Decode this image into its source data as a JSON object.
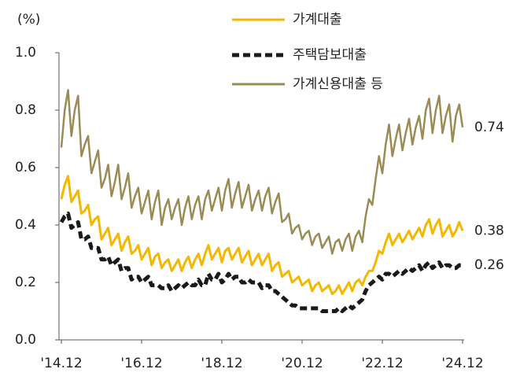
{
  "chart_data": {
    "type": "line",
    "y_label": "(%)",
    "categories": [
      "'14.12",
      null,
      null,
      null,
      null,
      null,
      null,
      null,
      null,
      null,
      null,
      null,
      null,
      null,
      null,
      null,
      null,
      null,
      null,
      null,
      null,
      null,
      null,
      null,
      "'16.12",
      null,
      null,
      null,
      null,
      null,
      null,
      null,
      null,
      null,
      null,
      null,
      null,
      null,
      null,
      null,
      null,
      null,
      null,
      null,
      null,
      null,
      null,
      null,
      "'18.12",
      null,
      null,
      null,
      null,
      null,
      null,
      null,
      null,
      null,
      null,
      null,
      null,
      null,
      null,
      null,
      null,
      null,
      null,
      null,
      null,
      null,
      null,
      null,
      "'20.12",
      null,
      null,
      null,
      null,
      null,
      null,
      null,
      null,
      null,
      null,
      null,
      null,
      null,
      null,
      null,
      null,
      null,
      null,
      null,
      null,
      null,
      null,
      null,
      "'22.12",
      null,
      null,
      null,
      null,
      null,
      null,
      null,
      null,
      null,
      null,
      null,
      null,
      null,
      null,
      null,
      null,
      null,
      null,
      null,
      null,
      null,
      null,
      null,
      "'24.12"
    ],
    "ylim": [
      0,
      1
    ],
    "yticks": [
      {
        "value": 0,
        "label": "0.0"
      },
      0.2,
      0.4,
      0.6,
      0.8,
      {
        "value": 1,
        "label": "1.0"
      }
    ],
    "grid": false,
    "legend": "top",
    "series": [
      {
        "name": "가계대출",
        "color": "#f5b800",
        "dashed": false,
        "values": [
          0.49,
          0.54,
          0.57,
          0.48,
          0.5,
          0.52,
          0.44,
          0.45,
          0.47,
          0.4,
          0.42,
          0.43,
          0.35,
          0.37,
          0.39,
          0.33,
          0.35,
          0.37,
          0.31,
          0.34,
          0.36,
          0.3,
          0.31,
          0.33,
          0.28,
          0.3,
          0.32,
          0.26,
          0.29,
          0.3,
          0.25,
          0.27,
          0.28,
          0.24,
          0.26,
          0.28,
          0.24,
          0.27,
          0.29,
          0.25,
          0.28,
          0.3,
          0.26,
          0.3,
          0.33,
          0.28,
          0.3,
          0.32,
          0.27,
          0.31,
          0.32,
          0.28,
          0.3,
          0.32,
          0.27,
          0.29,
          0.31,
          0.26,
          0.28,
          0.3,
          0.26,
          0.28,
          0.3,
          0.24,
          0.26,
          0.27,
          0.22,
          0.23,
          0.24,
          0.2,
          0.21,
          0.22,
          0.19,
          0.2,
          0.21,
          0.17,
          0.19,
          0.2,
          0.17,
          0.18,
          0.19,
          0.16,
          0.17,
          0.19,
          0.16,
          0.18,
          0.2,
          0.17,
          0.2,
          0.21,
          0.19,
          0.22,
          0.24,
          0.24,
          0.27,
          0.31,
          0.3,
          0.34,
          0.37,
          0.33,
          0.35,
          0.37,
          0.34,
          0.36,
          0.38,
          0.35,
          0.37,
          0.39,
          0.36,
          0.4,
          0.42,
          0.37,
          0.4,
          0.42,
          0.36,
          0.38,
          0.4,
          0.36,
          0.38,
          0.41,
          0.38
        ]
      },
      {
        "name": "주택담보대출",
        "color": "#1a1a1a",
        "dashed": true,
        "values": [
          0.41,
          0.43,
          0.44,
          0.39,
          0.4,
          0.41,
          0.35,
          0.35,
          0.36,
          0.32,
          0.32,
          0.32,
          0.28,
          0.28,
          0.29,
          0.26,
          0.27,
          0.28,
          0.24,
          0.25,
          0.25,
          0.21,
          0.22,
          0.22,
          0.2,
          0.21,
          0.22,
          0.19,
          0.19,
          0.19,
          0.18,
          0.18,
          0.19,
          0.17,
          0.18,
          0.19,
          0.18,
          0.19,
          0.2,
          0.19,
          0.19,
          0.21,
          0.19,
          0.19,
          0.23,
          0.21,
          0.21,
          0.23,
          0.2,
          0.21,
          0.23,
          0.21,
          0.22,
          0.22,
          0.2,
          0.2,
          0.21,
          0.2,
          0.2,
          0.2,
          0.18,
          0.19,
          0.19,
          0.17,
          0.17,
          0.16,
          0.15,
          0.14,
          0.13,
          0.12,
          0.12,
          0.11,
          0.11,
          0.11,
          0.11,
          0.11,
          0.11,
          0.11,
          0.1,
          0.1,
          0.1,
          0.1,
          0.1,
          0.11,
          0.1,
          0.11,
          0.12,
          0.11,
          0.12,
          0.13,
          0.14,
          0.17,
          0.19,
          0.2,
          0.21,
          0.22,
          0.21,
          0.23,
          0.23,
          0.22,
          0.23,
          0.24,
          0.23,
          0.24,
          0.25,
          0.24,
          0.25,
          0.26,
          0.24,
          0.26,
          0.27,
          0.25,
          0.26,
          0.27,
          0.25,
          0.26,
          0.26,
          0.25,
          0.25,
          0.26,
          0.26
        ]
      },
      {
        "name": "가계신용대출 등",
        "color": "#9a8c55",
        "dashed": false,
        "values": [
          0.67,
          0.8,
          0.87,
          0.71,
          0.8,
          0.85,
          0.64,
          0.68,
          0.71,
          0.58,
          0.62,
          0.66,
          0.53,
          0.56,
          0.61,
          0.5,
          0.55,
          0.61,
          0.49,
          0.53,
          0.58,
          0.46,
          0.5,
          0.53,
          0.44,
          0.48,
          0.52,
          0.42,
          0.48,
          0.52,
          0.4,
          0.46,
          0.49,
          0.42,
          0.46,
          0.49,
          0.4,
          0.46,
          0.5,
          0.42,
          0.47,
          0.5,
          0.42,
          0.49,
          0.52,
          0.45,
          0.49,
          0.53,
          0.45,
          0.52,
          0.56,
          0.46,
          0.51,
          0.55,
          0.46,
          0.5,
          0.54,
          0.45,
          0.49,
          0.52,
          0.45,
          0.5,
          0.53,
          0.44,
          0.48,
          0.51,
          0.41,
          0.42,
          0.44,
          0.37,
          0.39,
          0.4,
          0.35,
          0.37,
          0.38,
          0.33,
          0.36,
          0.37,
          0.32,
          0.34,
          0.36,
          0.3,
          0.34,
          0.35,
          0.31,
          0.35,
          0.37,
          0.31,
          0.36,
          0.38,
          0.34,
          0.43,
          0.49,
          0.47,
          0.56,
          0.64,
          0.58,
          0.68,
          0.75,
          0.64,
          0.7,
          0.75,
          0.66,
          0.72,
          0.77,
          0.68,
          0.74,
          0.78,
          0.7,
          0.8,
          0.84,
          0.72,
          0.8,
          0.85,
          0.72,
          0.78,
          0.82,
          0.69,
          0.78,
          0.82,
          0.74
        ]
      }
    ]
  }
}
